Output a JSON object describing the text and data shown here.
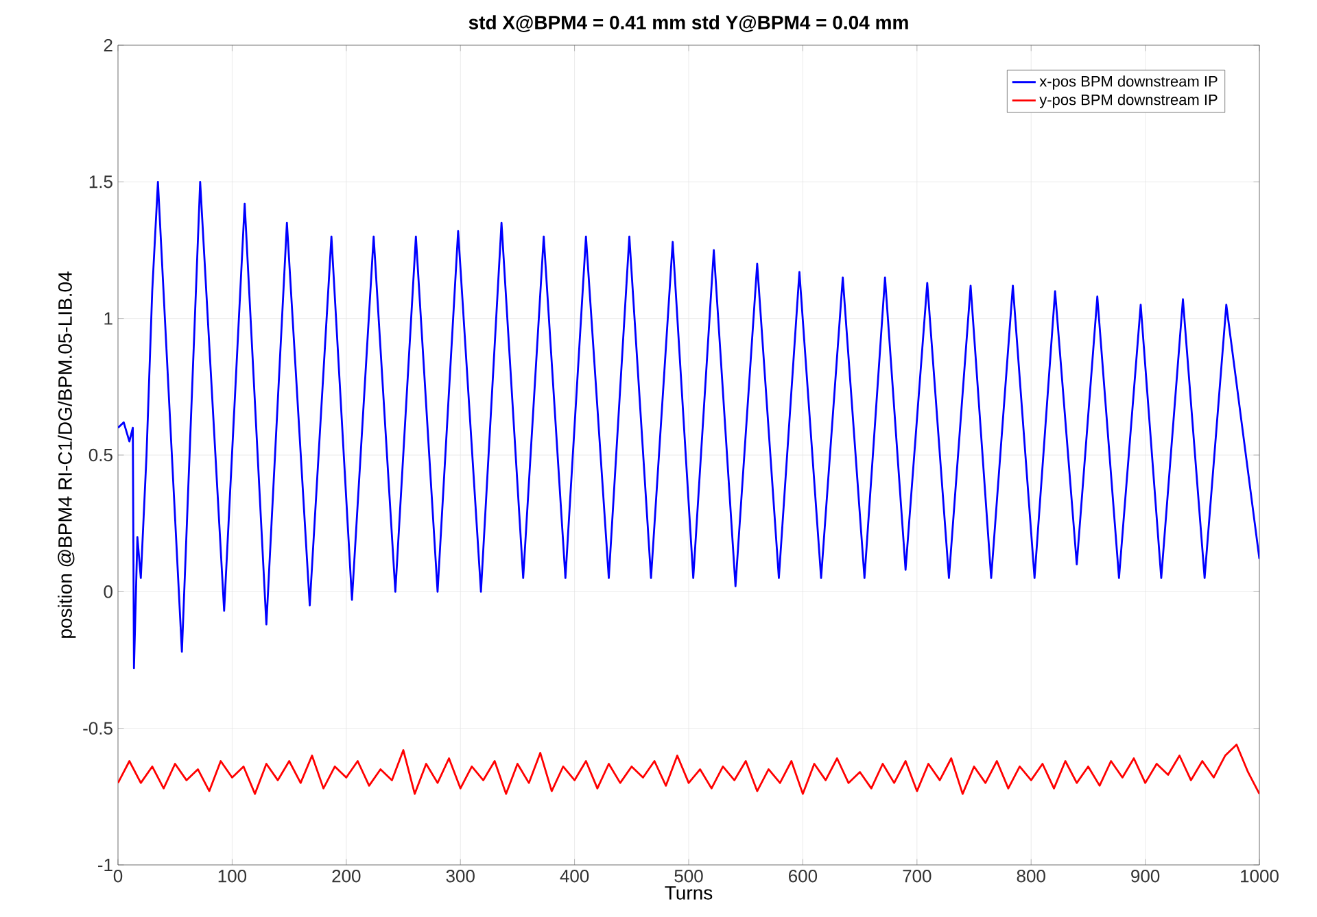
{
  "chart_data": {
    "type": "line",
    "title": "std X@BPM4 = 0.41 mm std Y@BPM4 = 0.04 mm",
    "xlabel": "Turns",
    "ylabel": "position @BPM4 RI-C1/DG/BPM.05-LIB.04",
    "xlim": [
      0,
      1000
    ],
    "ylim": [
      -1,
      2
    ],
    "xticks": [
      0,
      100,
      200,
      300,
      400,
      500,
      600,
      700,
      800,
      900,
      1000
    ],
    "yticks": [
      -1,
      -0.5,
      0,
      0.5,
      1,
      1.5,
      2
    ],
    "grid": true,
    "legend": "top right",
    "line_style": "solid",
    "marker": "none",
    "series": [
      {
        "name": "x-pos BPM downstream IP",
        "color": "#0000ff",
        "x": [
          0,
          5,
          10,
          13,
          14,
          17,
          20,
          25,
          30,
          35,
          56,
          72,
          93,
          111,
          130,
          148,
          168,
          187,
          205,
          224,
          243,
          261,
          280,
          298,
          318,
          336,
          355,
          373,
          392,
          410,
          430,
          448,
          467,
          486,
          504,
          522,
          541,
          560,
          579,
          597,
          616,
          635,
          654,
          672,
          690,
          709,
          728,
          747,
          765,
          784,
          803,
          821,
          840,
          858,
          877,
          896,
          914,
          933,
          952,
          971,
          1000
        ],
        "values": [
          0.6,
          0.62,
          0.55,
          0.6,
          -0.28,
          0.2,
          0.05,
          0.5,
          1.1,
          1.5,
          -0.22,
          1.5,
          -0.07,
          1.42,
          -0.12,
          1.35,
          -0.05,
          1.3,
          -0.03,
          1.3,
          0.0,
          1.3,
          0.0,
          1.32,
          0.0,
          1.35,
          0.05,
          1.3,
          0.05,
          1.3,
          0.05,
          1.3,
          0.05,
          1.28,
          0.05,
          1.25,
          0.02,
          1.2,
          0.05,
          1.17,
          0.05,
          1.15,
          0.05,
          1.15,
          0.08,
          1.13,
          0.05,
          1.12,
          0.05,
          1.12,
          0.05,
          1.1,
          0.1,
          1.08,
          0.05,
          1.05,
          0.05,
          1.07,
          0.05,
          1.05,
          0.12
        ]
      },
      {
        "name": "y-pos BPM downstream IP",
        "color": "#ff0000",
        "x": [
          0,
          10,
          20,
          30,
          40,
          50,
          60,
          70,
          80,
          90,
          100,
          110,
          120,
          130,
          140,
          150,
          160,
          170,
          180,
          190,
          200,
          210,
          220,
          230,
          240,
          250,
          260,
          270,
          280,
          290,
          300,
          310,
          320,
          330,
          340,
          350,
          360,
          370,
          380,
          390,
          400,
          410,
          420,
          430,
          440,
          450,
          460,
          470,
          480,
          490,
          500,
          510,
          520,
          530,
          540,
          550,
          560,
          570,
          580,
          590,
          600,
          610,
          620,
          630,
          640,
          650,
          660,
          670,
          680,
          690,
          700,
          710,
          720,
          730,
          740,
          750,
          760,
          770,
          780,
          790,
          800,
          810,
          820,
          830,
          840,
          850,
          860,
          870,
          880,
          890,
          900,
          910,
          920,
          930,
          940,
          950,
          960,
          970,
          980,
          990,
          1000
        ],
        "values": [
          -0.7,
          -0.62,
          -0.7,
          -0.64,
          -0.72,
          -0.63,
          -0.69,
          -0.65,
          -0.73,
          -0.62,
          -0.68,
          -0.64,
          -0.74,
          -0.63,
          -0.69,
          -0.62,
          -0.7,
          -0.6,
          -0.72,
          -0.64,
          -0.68,
          -0.62,
          -0.71,
          -0.65,
          -0.69,
          -0.58,
          -0.74,
          -0.63,
          -0.7,
          -0.61,
          -0.72,
          -0.64,
          -0.69,
          -0.62,
          -0.74,
          -0.63,
          -0.7,
          -0.59,
          -0.73,
          -0.64,
          -0.69,
          -0.62,
          -0.72,
          -0.63,
          -0.7,
          -0.64,
          -0.68,
          -0.62,
          -0.71,
          -0.6,
          -0.7,
          -0.65,
          -0.72,
          -0.64,
          -0.69,
          -0.62,
          -0.73,
          -0.65,
          -0.7,
          -0.62,
          -0.74,
          -0.63,
          -0.69,
          -0.61,
          -0.7,
          -0.66,
          -0.72,
          -0.63,
          -0.7,
          -0.62,
          -0.73,
          -0.63,
          -0.69,
          -0.61,
          -0.74,
          -0.64,
          -0.7,
          -0.62,
          -0.72,
          -0.64,
          -0.69,
          -0.63,
          -0.72,
          -0.62,
          -0.7,
          -0.64,
          -0.71,
          -0.62,
          -0.68,
          -0.61,
          -0.7,
          -0.63,
          -0.67,
          -0.6,
          -0.69,
          -0.62,
          -0.68,
          -0.6,
          -0.56,
          -0.66,
          -0.74
        ]
      }
    ]
  }
}
